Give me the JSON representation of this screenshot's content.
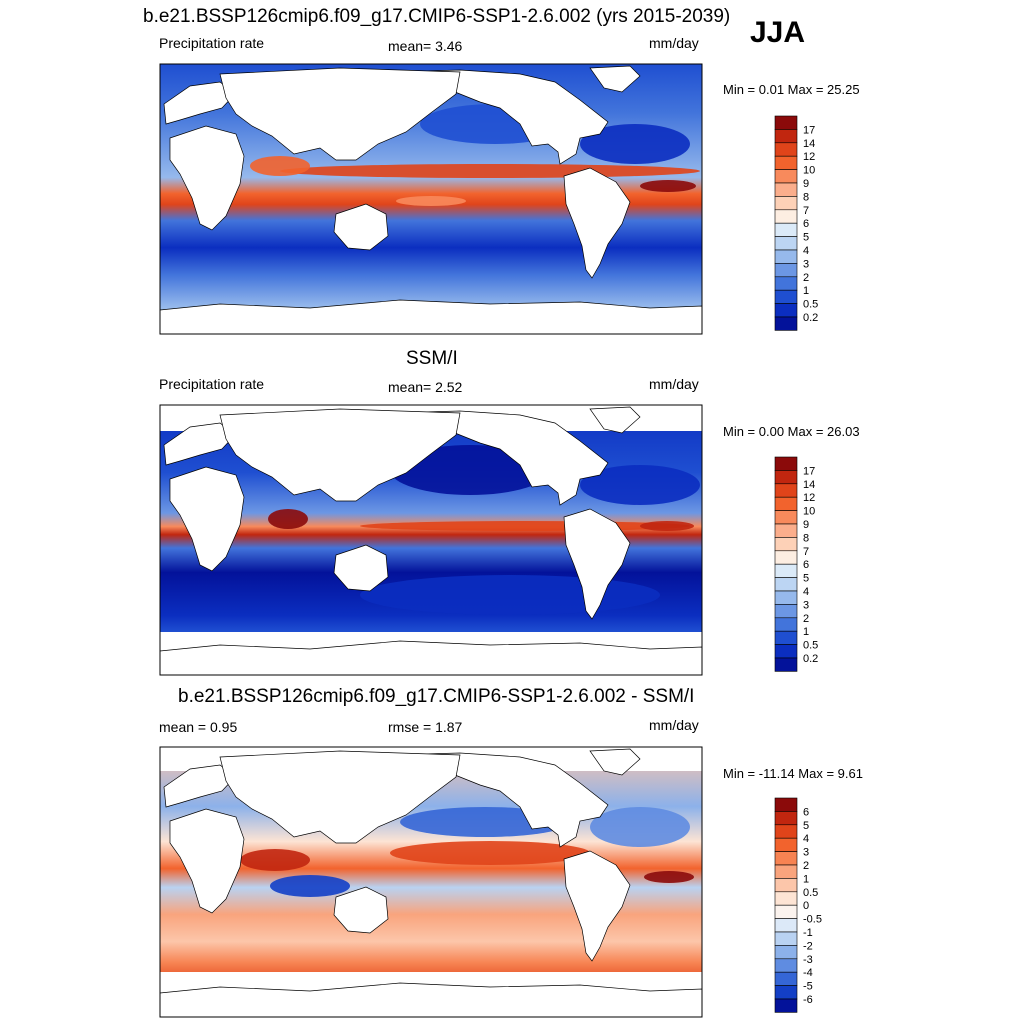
{
  "season_label": "JJA",
  "chart_data": [
    {
      "type": "heatmap",
      "title": "b.e21.BSSP126cmip6.f09_g17.CMIP6-SSP1-2.6.002 (yrs 2015-2039)",
      "left_label": "Precipitation rate",
      "center_label": "mean=   3.46",
      "mean": 3.46,
      "units": "mm/day",
      "minmax_label": "Min =   0.01 Max =  25.25",
      "min": 0.01,
      "max": 25.25,
      "colorbar_levels": [
        "17",
        "14",
        "12",
        "10",
        "9",
        "8",
        "7",
        "6",
        "5",
        "4",
        "3",
        "2",
        "1",
        "0.5",
        "0.2"
      ],
      "colorbar_colors": [
        "#8b0a0a",
        "#c1260f",
        "#e0441a",
        "#f2632d",
        "#f88a5c",
        "#fbae8c",
        "#fdd1b7",
        "#fdeee2",
        "#dbeaf8",
        "#bcd5f3",
        "#96b9ec",
        "#6c97e4",
        "#4274db",
        "#1f4fd1",
        "#0b2ec0",
        "#03129a"
      ],
      "ocean_pattern": "model"
    },
    {
      "type": "heatmap",
      "title": "SSM/I",
      "left_label": "Precipitation rate",
      "center_label": "mean=   2.52",
      "mean": 2.52,
      "units": "mm/day",
      "minmax_label": "Min =   0.00 Max =  26.03",
      "min": 0.0,
      "max": 26.03,
      "colorbar_levels": [
        "17",
        "14",
        "12",
        "10",
        "9",
        "8",
        "7",
        "6",
        "5",
        "4",
        "3",
        "2",
        "1",
        "0.5",
        "0.2"
      ],
      "colorbar_colors": [
        "#8b0a0a",
        "#c1260f",
        "#e0441a",
        "#f2632d",
        "#f88a5c",
        "#fbae8c",
        "#fdd1b7",
        "#fdeee2",
        "#dbeaf8",
        "#bcd5f3",
        "#96b9ec",
        "#6c97e4",
        "#4274db",
        "#1f4fd1",
        "#0b2ec0",
        "#03129a"
      ],
      "ocean_pattern": "obs"
    },
    {
      "type": "heatmap",
      "title": "b.e21.BSSP126cmip6.f09_g17.CMIP6-SSP1-2.6.002 - SSM/I",
      "left_label": "mean =   0.95",
      "center_label": "rmse =   1.87",
      "mean": 0.95,
      "rmse": 1.87,
      "units": "mm/day",
      "minmax_label": "Min = -11.14 Max =   9.61",
      "min": -11.14,
      "max": 9.61,
      "colorbar_levels": [
        "6",
        "5",
        "4",
        "3",
        "2",
        "1",
        "0.5",
        "0",
        "-0.5",
        "-1",
        "-2",
        "-3",
        "-4",
        "-5",
        "-6"
      ],
      "colorbar_colors": [
        "#8b0a0a",
        "#c1260f",
        "#e0441a",
        "#f2632d",
        "#f78352",
        "#f9a47d",
        "#fcc6aa",
        "#fde4d4",
        "#fbf3ee",
        "#dce9f8",
        "#b9d2f2",
        "#8cb1ea",
        "#5f8ce1",
        "#3566d6",
        "#133fc6",
        "#03129a"
      ],
      "ocean_pattern": "diff"
    }
  ]
}
